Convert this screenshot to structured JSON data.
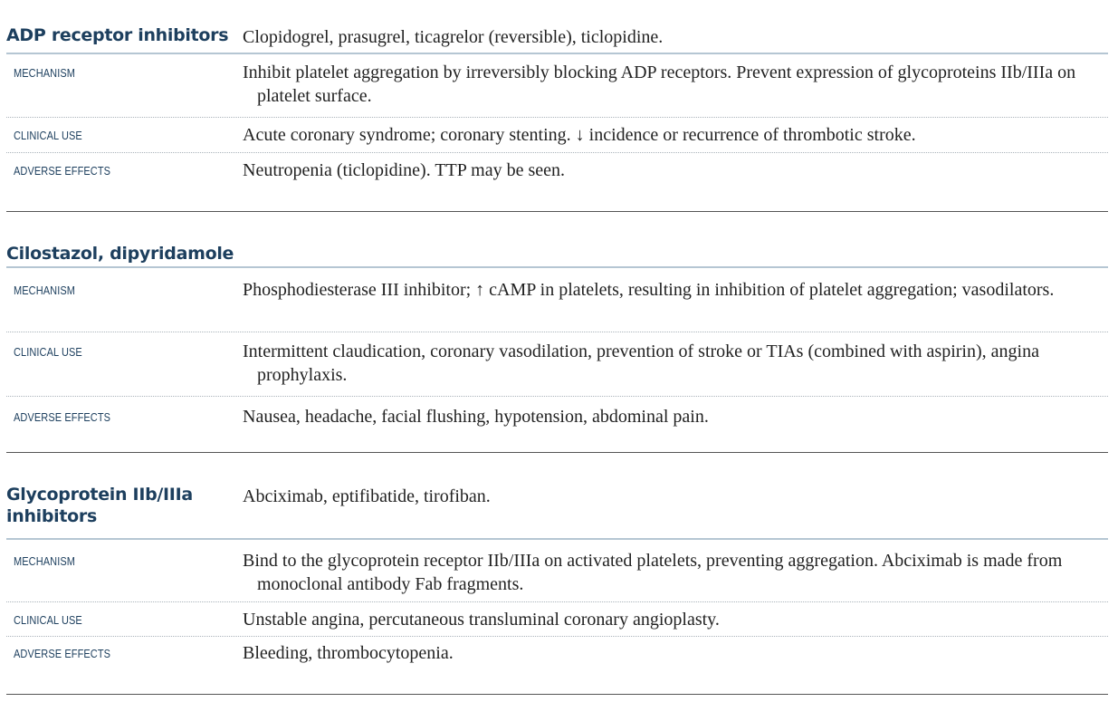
{
  "sections": [
    {
      "title": "ADP receptor inhibitors",
      "drugs": "Clopidogrel, prasugrel, ticagrelor (reversible), ticlopidine.",
      "rows": [
        {
          "label": "MECHANISM",
          "text": "Inhibit platelet aggregation by irreversibly blocking ADP receptors. Prevent expression of glycoproteins IIb/IIIa on platelet surface."
        },
        {
          "label": "CLINICAL USE",
          "text": "Acute coronary syndrome; coronary stenting. ↓ incidence or recurrence of thrombotic stroke."
        },
        {
          "label": "ADVERSE EFFECTS",
          "text": "Neutropenia (ticlopidine). TTP may be seen."
        }
      ]
    },
    {
      "title": "Cilostazol, dipyridamole",
      "drugs": "",
      "rows": [
        {
          "label": "MECHANISM",
          "text": "Phosphodiesterase III inhibitor; ↑ cAMP in platelets, resulting in inhibition of platelet aggregation; vasodilators."
        },
        {
          "label": "CLINICAL USE",
          "text": "Intermittent claudication, coronary vasodilation, prevention of stroke or TIAs (combined with aspirin), angina prophylaxis."
        },
        {
          "label": "ADVERSE EFFECTS",
          "text": "Nausea, headache, facial flushing, hypotension, abdominal pain."
        }
      ]
    },
    {
      "title": "Glycoprotein IIb/IIIa inhibitors",
      "drugs": "Abciximab, eptifibatide, tirofiban.",
      "rows": [
        {
          "label": "MECHANISM",
          "text": "Bind to the glycoprotein receptor IIb/IIIa on activated platelets, preventing aggregation. Abciximab is made from monoclonal antibody Fab fragments."
        },
        {
          "label": "CLINICAL USE",
          "text": "Unstable angina, percutaneous transluminal coronary angioplasty."
        },
        {
          "label": "ADVERSE EFFECTS",
          "text": "Bleeding, thrombocytopenia."
        }
      ]
    }
  ]
}
